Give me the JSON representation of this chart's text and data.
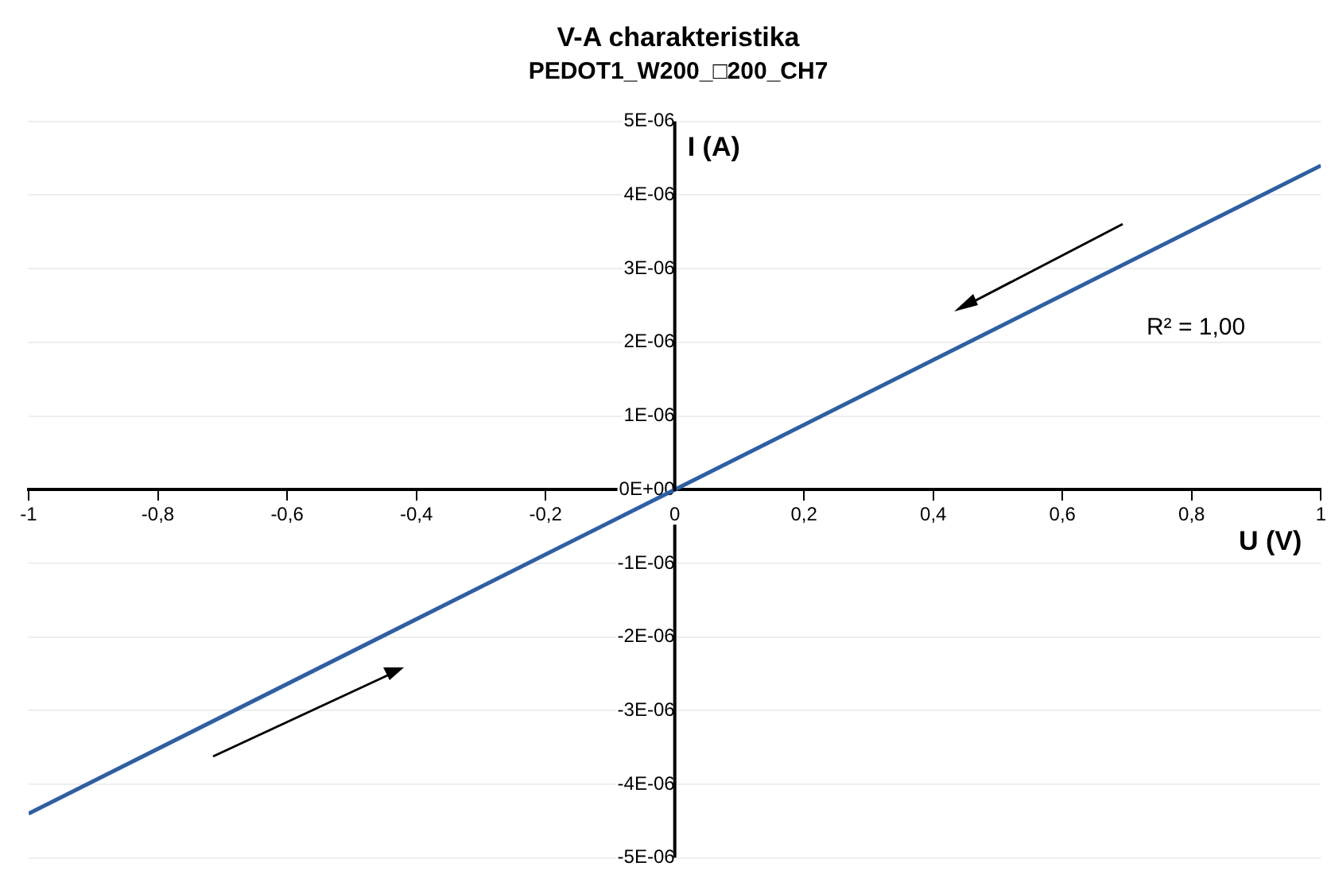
{
  "chart_data": {
    "type": "line",
    "title": "V-A charakteristika",
    "subtitle": "PEDOT1_W200_□200_CH7",
    "xlabel": "U (V)",
    "ylabel": "I (A)",
    "x": [
      -1,
      0,
      1
    ],
    "series": [
      {
        "color": "#2e5fa3",
        "values": [
          -4.4e-06,
          0,
          4.4e-06
        ]
      }
    ],
    "xlim": [
      -1,
      1
    ],
    "ylim": [
      -5e-06,
      5e-06
    ],
    "xticks": [
      {
        "value": -1,
        "label": "-1"
      },
      {
        "value": -0.8,
        "label": "-0,8"
      },
      {
        "value": -0.6,
        "label": "-0,6"
      },
      {
        "value": -0.4,
        "label": "-0,4"
      },
      {
        "value": -0.2,
        "label": "-0,2"
      },
      {
        "value": 0,
        "label": "0"
      },
      {
        "value": 0.2,
        "label": "0,2"
      },
      {
        "value": 0.4,
        "label": "0,4"
      },
      {
        "value": 0.6,
        "label": "0,6"
      },
      {
        "value": 0.8,
        "label": "0,8"
      },
      {
        "value": 1,
        "label": "1"
      }
    ],
    "yticks": [
      {
        "value": -5e-06,
        "label": "-5E-06"
      },
      {
        "value": -4e-06,
        "label": "-4E-06"
      },
      {
        "value": -3e-06,
        "label": "-3E-06"
      },
      {
        "value": -2e-06,
        "label": "-2E-06"
      },
      {
        "value": -1e-06,
        "label": "-1E-06"
      },
      {
        "value": 0,
        "label": "0E+00"
      },
      {
        "value": 1e-06,
        "label": "1E-06"
      },
      {
        "value": 2e-06,
        "label": "2E-06"
      },
      {
        "value": 3e-06,
        "label": "3E-06"
      },
      {
        "value": 4e-06,
        "label": "4E-06"
      },
      {
        "value": 5e-06,
        "label": "5E-06"
      }
    ],
    "annotations": [
      "R² = 1,00"
    ],
    "grid": "y",
    "legend": false,
    "marker": "none",
    "line_style": "solid"
  }
}
